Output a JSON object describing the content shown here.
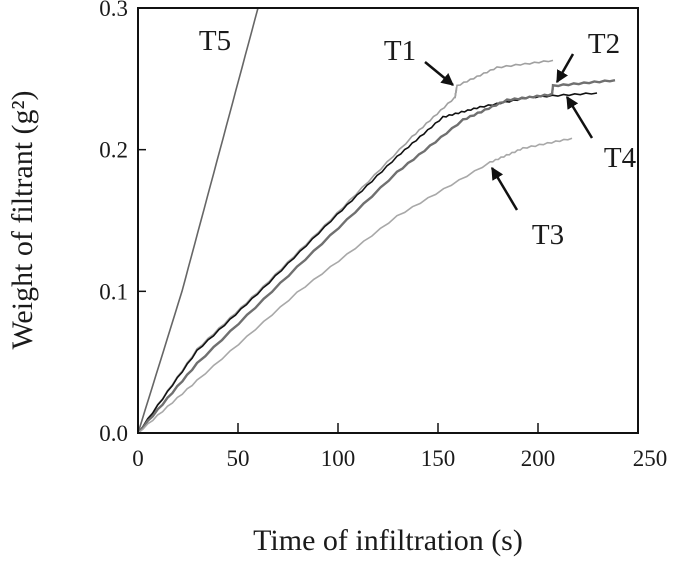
{
  "chart_data": {
    "type": "line",
    "title": "",
    "xlabel": "Time of infiltration (s)",
    "ylabel": "Weight of filtrant (g²)",
    "xlim": [
      0,
      250
    ],
    "ylim": [
      0,
      0.3
    ],
    "xticks": [
      "0",
      "50",
      "100",
      "150",
      "200",
      "250"
    ],
    "yticks": [
      "0.0",
      "0.1",
      "0.2",
      "0.3"
    ],
    "grid": false,
    "legend": "none (direct labels with arrows)",
    "series": [
      {
        "name": "T5",
        "color": "#666666",
        "x": [
          0,
          22,
          41,
          60
        ],
        "y": [
          0,
          0.1,
          0.2,
          0.3
        ]
      },
      {
        "name": "T1",
        "color": "#a0a0a0",
        "x": [
          0,
          29.5,
          62.5,
          99.5,
          137,
          158.5,
          159.5,
          179.5,
          207.5
        ],
        "y": [
          0,
          0.059,
          0.103,
          0.155,
          0.209,
          0.237,
          0.245,
          0.258,
          0.263
        ]
      },
      {
        "name": "T4",
        "color": "#111111",
        "x": [
          0,
          29.5,
          62.5,
          99.5,
          129.5,
          152.5,
          171,
          196,
          229.5
        ],
        "y": [
          0,
          0.058,
          0.102,
          0.154,
          0.195,
          0.223,
          0.23,
          0.237,
          0.24
        ]
      },
      {
        "name": "T2",
        "color": "#707070",
        "x": [
          0,
          29.5,
          79.5,
          129.5,
          162.5,
          184.5,
          207,
          207.5,
          238.5
        ],
        "y": [
          0,
          0.049,
          0.117,
          0.184,
          0.221,
          0.235,
          0.239,
          0.245,
          0.249
        ]
      },
      {
        "name": "T3",
        "color": "#a8a8a8",
        "x": [
          0,
          29.5,
          79.5,
          129.5,
          176,
          192.5,
          217
        ],
        "y": [
          0,
          0.037,
          0.099,
          0.153,
          0.191,
          0.201,
          0.208
        ]
      }
    ],
    "annotations": [
      "T5",
      "T1",
      "T2",
      "T4",
      "T3"
    ]
  }
}
